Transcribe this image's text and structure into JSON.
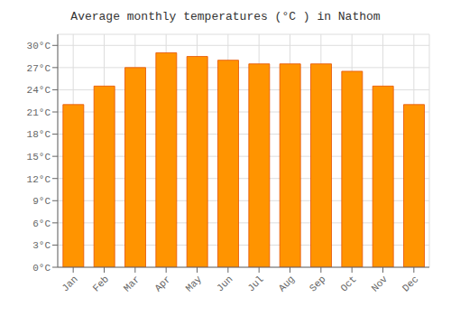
{
  "chart_data": {
    "type": "bar",
    "title": "Average monthly temperatures (°C ) in Nathom",
    "categories": [
      "Jan",
      "Feb",
      "Mar",
      "Apr",
      "May",
      "Jun",
      "Jul",
      "Aug",
      "Sep",
      "Oct",
      "Nov",
      "Dec"
    ],
    "values": [
      22.0,
      24.5,
      27.0,
      29.0,
      28.5,
      28.0,
      27.5,
      27.5,
      27.5,
      26.5,
      24.5,
      22.0
    ],
    "color": "#FF9400",
    "ylim": [
      0,
      31.5
    ],
    "yticks": [
      {
        "value": 0,
        "label": "0°C"
      },
      {
        "value": 3,
        "label": "3°C"
      },
      {
        "value": 6,
        "label": "6°C"
      },
      {
        "value": 9,
        "label": "9°C"
      },
      {
        "value": 12,
        "label": "12°C"
      },
      {
        "value": 15,
        "label": "15°C"
      },
      {
        "value": 18,
        "label": "18°C"
      },
      {
        "value": 21,
        "label": "21°C"
      },
      {
        "value": 24,
        "label": "24°C"
      },
      {
        "value": 27,
        "label": "27°C"
      },
      {
        "value": 30,
        "label": "30°C"
      }
    ],
    "grid": true
  }
}
